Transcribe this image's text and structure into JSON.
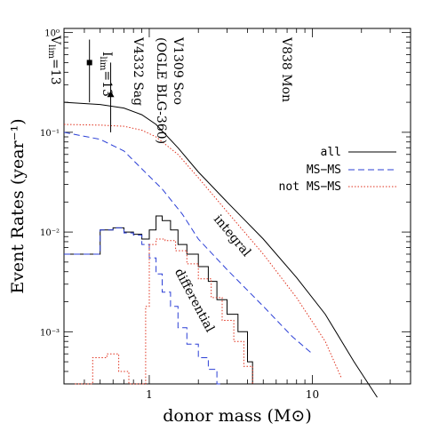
{
  "chart_data": {
    "type": "line",
    "xlabel": "donor mass (M⊙)",
    "ylabel": "Event Rates (year⁻¹)",
    "xscale": "log",
    "yscale": "log",
    "xlim": [
      0.3,
      40
    ],
    "ylim": [
      0.0003,
      1.1
    ],
    "x_ticks": [
      {
        "value": 1,
        "label": "1"
      },
      {
        "value": 10,
        "label": "10"
      }
    ],
    "y_ticks": [
      {
        "value": 1,
        "label": "10⁰"
      },
      {
        "value": 0.1,
        "label": "10⁻¹"
      },
      {
        "value": 0.01,
        "label": "10⁻²"
      },
      {
        "value": 0.001,
        "label": "10⁻³"
      }
    ],
    "legend": {
      "placement": "right",
      "entries": [
        {
          "name": "all",
          "color": "#000000",
          "dash": "solid"
        },
        {
          "name": "MS−MS",
          "color": "#2b3fd6",
          "dash": "dashed"
        },
        {
          "name": "not MS−MS",
          "color": "#e0321e",
          "dash": "dotted"
        }
      ]
    },
    "integral": {
      "all": {
        "x": [
          0.3,
          0.5,
          0.7,
          0.9,
          1.1,
          1.5,
          2,
          3,
          5,
          8,
          12,
          18,
          25
        ],
        "y": [
          0.2,
          0.19,
          0.175,
          0.15,
          0.12,
          0.07,
          0.04,
          0.02,
          0.0085,
          0.0035,
          0.0015,
          0.0005,
          0.00022
        ]
      },
      "ms_ms": {
        "x": [
          0.3,
          0.5,
          0.7,
          0.9,
          1.2,
          1.6,
          2,
          3,
          5,
          7.5,
          10
        ],
        "y": [
          0.1,
          0.085,
          0.065,
          0.043,
          0.027,
          0.015,
          0.0085,
          0.0042,
          0.0018,
          0.0009,
          0.0006
        ]
      },
      "not_ms_ms": {
        "x": [
          0.3,
          0.5,
          0.7,
          0.9,
          1.1,
          1.5,
          2,
          3,
          5,
          8,
          12,
          15
        ],
        "y": [
          0.12,
          0.118,
          0.115,
          0.105,
          0.09,
          0.06,
          0.035,
          0.016,
          0.006,
          0.0022,
          0.0008,
          0.00035
        ]
      }
    },
    "differential": {
      "all": {
        "x": [
          0.3,
          0.5,
          0.6,
          0.7,
          0.8,
          0.9,
          1.0,
          1.1,
          1.2,
          1.35,
          1.5,
          1.7,
          2.0,
          2.3,
          2.6,
          3.0,
          3.5,
          4.0,
          4.3,
          4.5
        ],
        "y": [
          0.006,
          0.0105,
          0.011,
          0.01,
          0.0095,
          0.0085,
          0.0105,
          0.0145,
          0.013,
          0.0105,
          0.0075,
          0.006,
          0.0045,
          0.0032,
          0.0021,
          0.0015,
          0.001,
          0.0005,
          0.0003,
          0.0003
        ]
      },
      "ms_ms": {
        "x": [
          0.3,
          0.5,
          0.6,
          0.7,
          0.8,
          0.9,
          1.0,
          1.1,
          1.2,
          1.35,
          1.5,
          1.7,
          2.0,
          2.3,
          2.6,
          2.8
        ],
        "y": [
          0.006,
          0.0105,
          0.011,
          0.0098,
          0.0093,
          0.0075,
          0.0055,
          0.0038,
          0.0025,
          0.0018,
          0.0011,
          0.00075,
          0.00055,
          0.00042,
          0.0003,
          0.0003
        ]
      },
      "not_ms_ms": {
        "x": [
          0.35,
          0.45,
          0.55,
          0.65,
          0.75,
          0.85,
          0.95,
          1.0,
          1.1,
          1.25,
          1.45,
          1.7,
          2.0,
          2.4,
          2.8,
          3.3,
          3.8,
          4.3
        ],
        "y": [
          0.0003,
          0.00055,
          0.0006,
          0.0004,
          0.0003,
          0.0003,
          0.0018,
          0.0075,
          0.0085,
          0.0082,
          0.0065,
          0.0048,
          0.0034,
          0.0022,
          0.0013,
          0.0008,
          0.00045,
          0.0003
        ]
      }
    },
    "annotations": [
      {
        "text": "integral",
        "x": 3.6,
        "y": 0.004
      },
      {
        "text": "differential",
        "x": 1.9,
        "y": 0.0015
      }
    ],
    "events": [
      {
        "name": "V838 Mon",
        "x": 13.5,
        "y": 1.0
      },
      {
        "name": "V1309 Sco",
        "x": 1.62,
        "y": 1.0
      },
      {
        "name": "(OGLE BLG-360)",
        "x": 1.9,
        "y": 1.0
      },
      {
        "name": "V4332 Sag",
        "x": 1.2,
        "y": 0.72
      }
    ],
    "limits": [
      {
        "name": "V",
        "sub": "lim",
        "value": "=13",
        "marker": "square",
        "x": 0.43,
        "y": 0.5,
        "err_low": 0.2,
        "err_high": 0.85
      },
      {
        "name": "I",
        "sub": "lim",
        "value": "=13",
        "marker": "triangle",
        "x": 0.58,
        "y": 0.24,
        "err_low": 0.1,
        "err_high": 0.5
      }
    ]
  }
}
